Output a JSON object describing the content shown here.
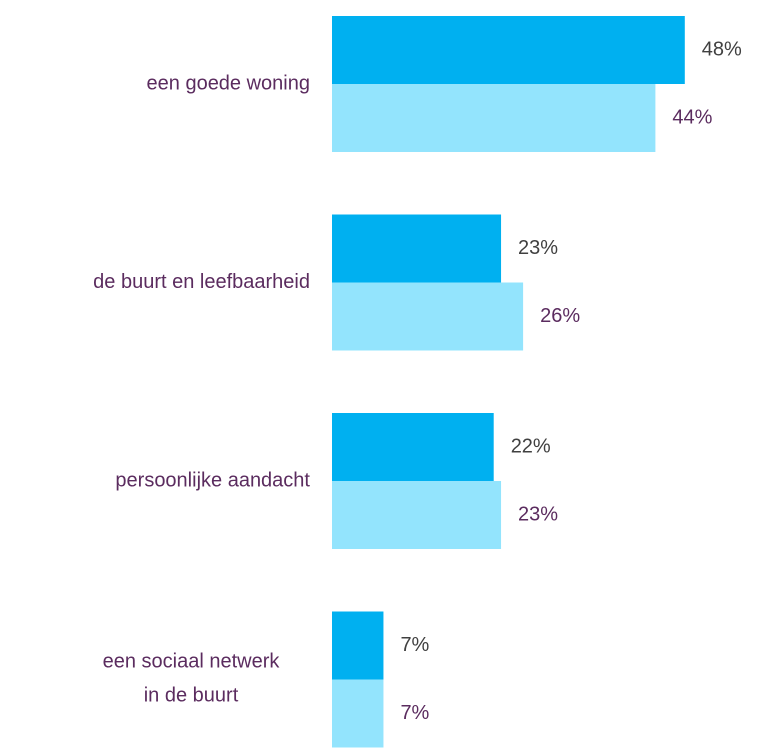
{
  "chart_data": {
    "type": "bar",
    "orientation": "horizontal",
    "categories": [
      "een goede woning",
      "de buurt en leefbaarheid",
      "persoonlijke aandacht",
      "een sociaal netwerk\nin de buurt"
    ],
    "series": [
      {
        "color": "#00b0f0",
        "label_color": "#404040",
        "values": [
          48,
          23,
          22,
          7
        ],
        "value_labels": [
          "48%",
          "23%",
          "22%",
          "7%"
        ]
      },
      {
        "color": "#93e4fd",
        "label_color": "#5b2c5f",
        "values": [
          44,
          26,
          23,
          7
        ],
        "value_labels": [
          "44%",
          "26%",
          "23%",
          "7%"
        ]
      }
    ],
    "category_color": "#5b2c5f"
  }
}
